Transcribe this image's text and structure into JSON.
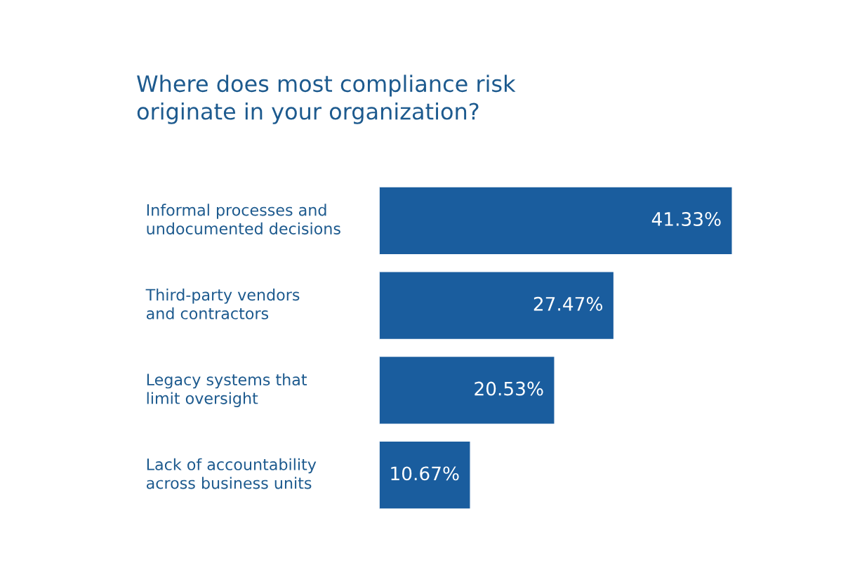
{
  "chart_data": {
    "type": "bar",
    "orientation": "horizontal",
    "title": "Where does most compliance risk\noriginate in your organization?",
    "categories": [
      "Informal processes and\nundocumented decisions",
      "Third-party vendors\nand contractors",
      "Legacy systems that\nlimit oversight",
      "Lack of accountability\nacross business units"
    ],
    "values": [
      41.33,
      27.47,
      20.53,
      10.67
    ],
    "value_labels": [
      "41.33%",
      "27.47%",
      "20.53%",
      "10.67%"
    ],
    "color": "#1a5d9e"
  }
}
